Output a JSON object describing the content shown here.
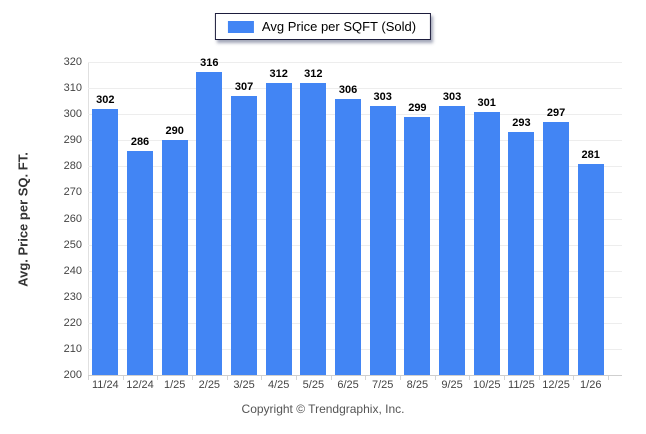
{
  "legend": {
    "label": "Avg Price per SQFT (Sold)",
    "swatch_color": "#4285F4"
  },
  "footer": {
    "copyright": "Copyright © Trendgraphix, Inc."
  },
  "chart_data": {
    "type": "bar",
    "title": "",
    "xlabel": "",
    "ylabel": "Avg. Price per SQ. FT.",
    "series_name": "Avg Price per SQFT (Sold)",
    "categories": [
      "11/24",
      "12/24",
      "1/25",
      "2/25",
      "3/25",
      "4/25",
      "5/25",
      "6/25",
      "7/25",
      "8/25",
      "9/25",
      "10/25",
      "11/25",
      "12/25",
      "1/26"
    ],
    "values": [
      302,
      286,
      290,
      316,
      307,
      312,
      312,
      306,
      303,
      299,
      303,
      301,
      293,
      297,
      281
    ],
    "ylim": [
      200,
      320
    ],
    "ytick_step": 10,
    "bar_color": "#4285F4",
    "grid": "horizontal",
    "legend_position": "top-center",
    "value_labels": true
  }
}
